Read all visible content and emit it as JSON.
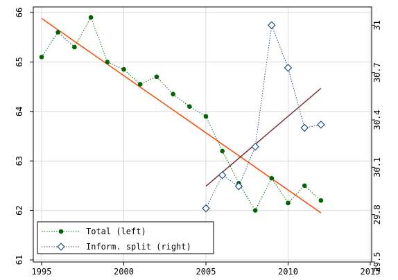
{
  "chart_data": {
    "type": "line",
    "x_ticks": [
      1995,
      2000,
      2005,
      2010,
      2015
    ],
    "xlim": [
      1995,
      2015
    ],
    "y_left_ticks": [
      61,
      62,
      63,
      64,
      65,
      66
    ],
    "y_left_lim": [
      61,
      66
    ],
    "y_right_ticks": [
      29.5,
      29.8,
      30.1,
      30.4,
      30.7,
      31
    ],
    "y_right_lim": [
      29.5,
      31.05
    ],
    "grid": true,
    "legend_position": "bottom-left",
    "series": [
      {
        "name": "Total (left)",
        "axis": "left",
        "color": "#006400",
        "marker": "filled-circle",
        "line_style": "dotted",
        "x": [
          1995,
          1996,
          1997,
          1998,
          1999,
          2000,
          2001,
          2002,
          2003,
          2004,
          2005,
          2006,
          2007,
          2008,
          2009,
          2010,
          2011,
          2012
        ],
        "y": [
          65.1,
          65.6,
          65.3,
          65.9,
          65.0,
          64.85,
          64.55,
          64.7,
          64.35,
          64.1,
          63.9,
          63.2,
          62.55,
          62.0,
          62.65,
          62.15,
          62.5,
          62.2
        ]
      },
      {
        "name": "Inform. split (right)",
        "axis": "right",
        "color": "#1f4e79",
        "marker": "hollow-diamond",
        "line_style": "dotted",
        "x": [
          2005,
          2006,
          2007,
          2008,
          2009,
          2010,
          2011,
          2012
        ],
        "y": [
          29.84,
          30.05,
          29.98,
          30.23,
          31.0,
          30.73,
          30.35,
          30.37
        ]
      }
    ],
    "trend_lines": [
      {
        "axis": "left",
        "color": "#ff4500",
        "x": [
          1995,
          2012
        ],
        "y": [
          65.88,
          61.95
        ]
      },
      {
        "axis": "right",
        "color": "#7b2d2d",
        "x": [
          2005,
          2012
        ],
        "y": [
          29.98,
          30.6
        ]
      }
    ]
  }
}
